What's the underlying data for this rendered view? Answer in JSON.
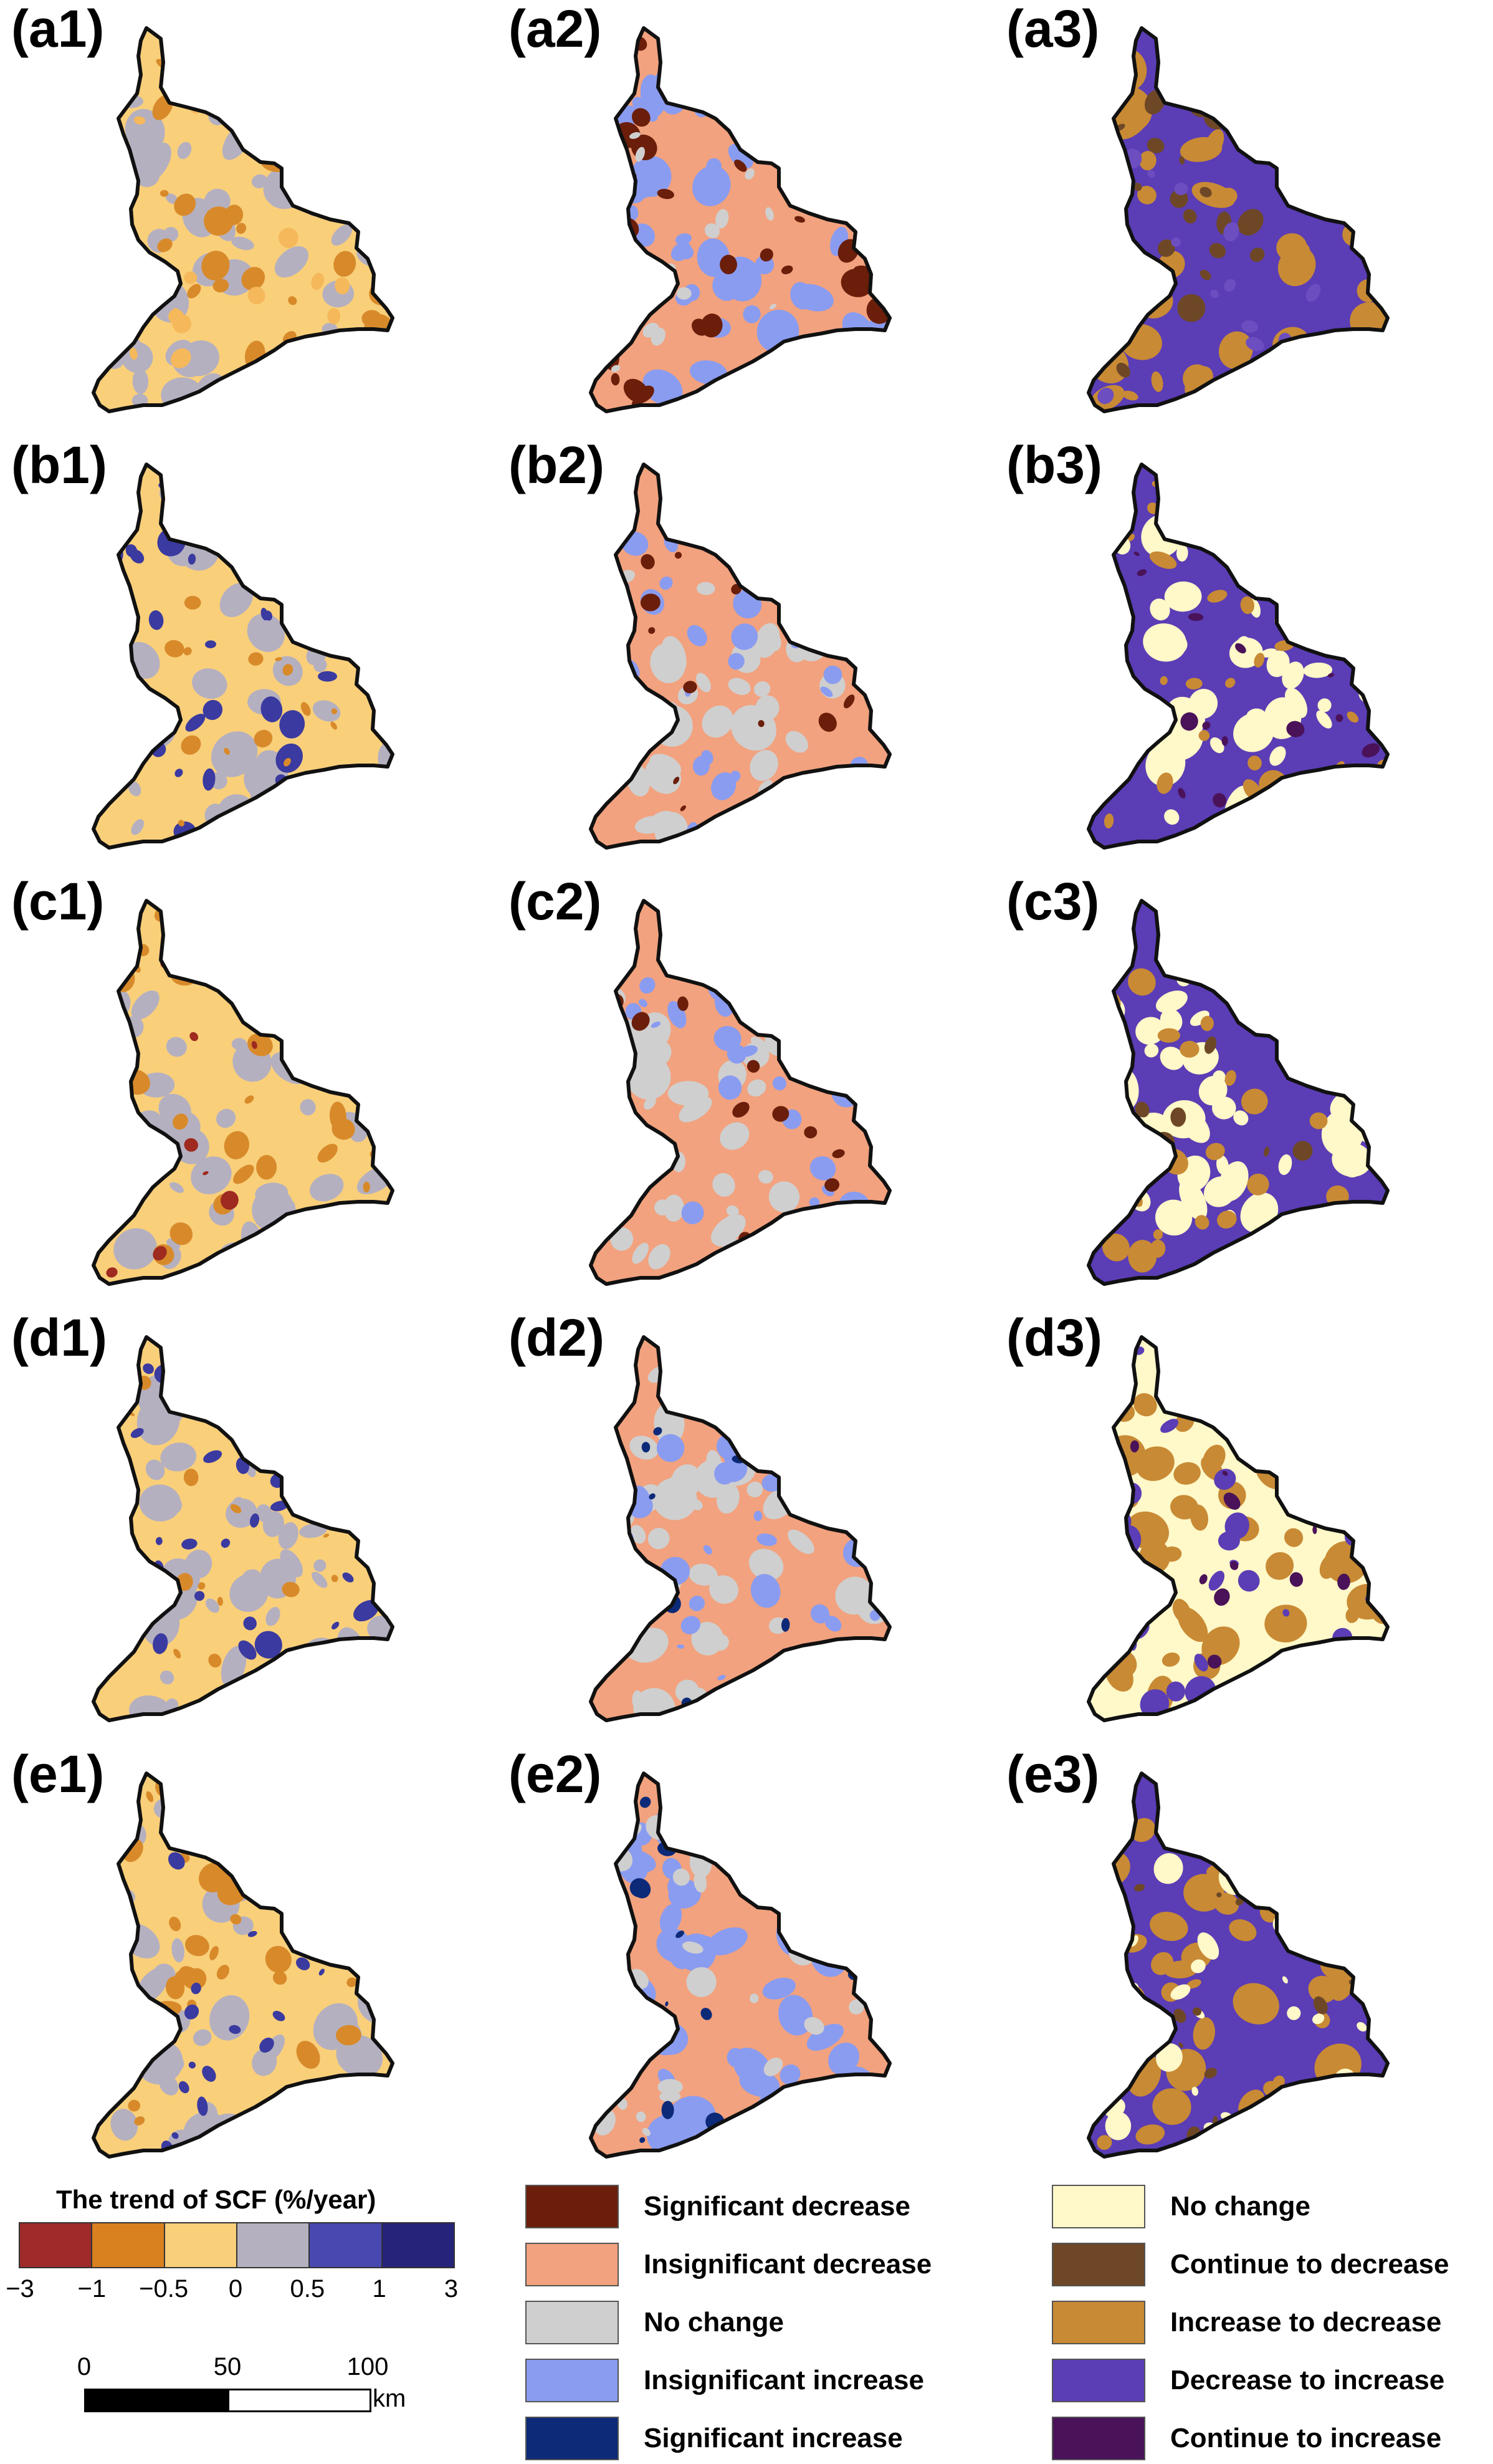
{
  "panels": [
    {
      "label": "(a1)",
      "base": "#f9cf7a",
      "patches": [
        "#b5b0c0",
        "#d88a2a",
        "#f5b85a"
      ]
    },
    {
      "label": "(a2)",
      "base": "#f2a27e",
      "patches": [
        "#8a9cf0",
        "#6b1e0a",
        "#cfcfcf"
      ]
    },
    {
      "label": "(a3)",
      "base": "#5b3db5",
      "patches": [
        "#c88a34",
        "#6e4826",
        "#6c4ec0"
      ]
    },
    {
      "label": "(b1)",
      "base": "#f9cf7a",
      "patches": [
        "#b5b0c0",
        "#3a3aa0",
        "#d88a2a"
      ]
    },
    {
      "label": "(b2)",
      "base": "#f2a27e",
      "patches": [
        "#cfcfcf",
        "#8a9cf0",
        "#6b1e0a"
      ]
    },
    {
      "label": "(b3)",
      "base": "#5b3db5",
      "patches": [
        "#fff8c8",
        "#c88a34",
        "#4a1259"
      ]
    },
    {
      "label": "(c1)",
      "base": "#f9cf7a",
      "patches": [
        "#b5b0c0",
        "#d88a2a",
        "#9e2a20"
      ]
    },
    {
      "label": "(c2)",
      "base": "#f2a27e",
      "patches": [
        "#cfcfcf",
        "#8a9cf0",
        "#6b1e0a"
      ]
    },
    {
      "label": "(c3)",
      "base": "#5b3db5",
      "patches": [
        "#fff8c8",
        "#c88a34",
        "#6e4826"
      ]
    },
    {
      "label": "(d1)",
      "base": "#f9cf7a",
      "patches": [
        "#b5b0c0",
        "#3a3aa0",
        "#d88a2a"
      ]
    },
    {
      "label": "(d2)",
      "base": "#f2a27e",
      "patches": [
        "#cfcfcf",
        "#8a9cf0",
        "#0c2a78"
      ]
    },
    {
      "label": "(d3)",
      "base": "#fff8c8",
      "patches": [
        "#c88a34",
        "#5b3db5",
        "#4a1259"
      ]
    },
    {
      "label": "(e1)",
      "base": "#f9cf7a",
      "patches": [
        "#b5b0c0",
        "#d88a2a",
        "#3a3aa0"
      ]
    },
    {
      "label": "(e2)",
      "base": "#f2a27e",
      "patches": [
        "#8a9cf0",
        "#cfcfcf",
        "#0c2a78"
      ]
    },
    {
      "label": "(e3)",
      "base": "#5b3db5",
      "patches": [
        "#c88a34",
        "#fff8c8",
        "#6e4826"
      ]
    }
  ],
  "trend_legend": {
    "title": "The trend of SCF (%/year)",
    "colors": [
      "#9e2a2a",
      "#d9801f",
      "#f9cf7a",
      "#b5b0c0",
      "#4848b0",
      "#25237a"
    ],
    "ticks": [
      "−3",
      "−1",
      "−0.5",
      "0",
      "0.5",
      "1",
      "3"
    ]
  },
  "significance_legend": [
    {
      "label": "Significant decrease",
      "color": "#6b1e0a"
    },
    {
      "label": "Insignificant decrease",
      "color": "#f2a27e"
    },
    {
      "label": "No change",
      "color": "#cfcfcf"
    },
    {
      "label": "Insignificant increase",
      "color": "#8a9cf0"
    },
    {
      "label": "Significant increase",
      "color": "#0c2a78"
    }
  ],
  "change_legend": [
    {
      "label": "No change",
      "color": "#fff8c8"
    },
    {
      "label": "Continue to decrease",
      "color": "#6e4826"
    },
    {
      "label": "Increase to decrease",
      "color": "#c88a34"
    },
    {
      "label": "Decrease to increase",
      "color": "#5b3db5"
    },
    {
      "label": "Continue to increase",
      "color": "#4a1259"
    }
  ],
  "scale_bar": {
    "ticks": [
      "0",
      "50",
      "100"
    ],
    "unit": "km"
  }
}
